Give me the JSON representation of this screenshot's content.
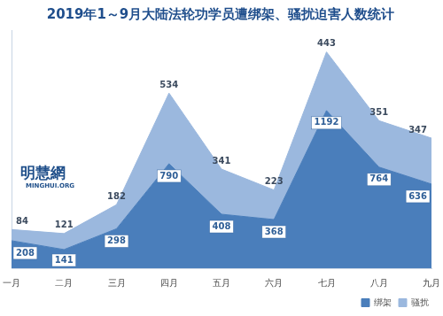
{
  "chart_data": {
    "type": "area",
    "title": "2019年1～9月大陆法轮功学员遭绑架、骚扰迫害人数统计",
    "categories": [
      "一月",
      "二月",
      "三月",
      "四月",
      "五月",
      "六月",
      "七月",
      "八月",
      "九月"
    ],
    "series": [
      {
        "name": "绑架",
        "color": "#4a7ebb",
        "values": [
          208,
          141,
          298,
          790,
          408,
          368,
          1192,
          764,
          636
        ]
      },
      {
        "name": "骚扰",
        "color": "#9bb8de",
        "values": [
          84,
          121,
          182,
          534,
          341,
          223,
          443,
          351,
          347
        ]
      }
    ],
    "stacked": true,
    "ylim": [
      0,
      1800
    ],
    "grid": false,
    "tick_labels": "x",
    "data_labels": true,
    "legend": "bottom-right",
    "annotations": [
      "明慧網",
      "MINGHUI.ORG"
    ]
  }
}
